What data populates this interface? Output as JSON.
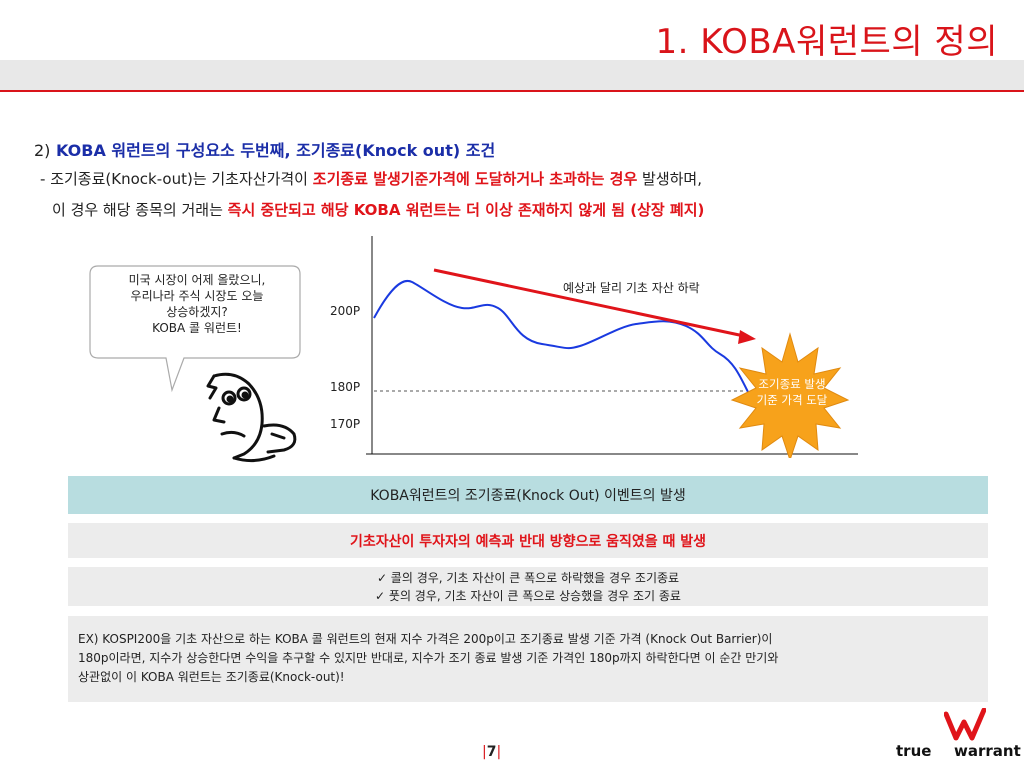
{
  "title": "1. KOBA워런트의 정의",
  "section": {
    "num": "2)",
    "heading": "KOBA 워런트의 구성요소 두번째, 조기종료(Knock out) 조건",
    "line1_dash": "-",
    "line1_a": "조기종료(Knock-out)는 기초자산가격이 ",
    "line1_red": "조기종료 발생기준가격에 도달하거나 초과하는 경우",
    "line1_b": " 발생하며,",
    "line2_a": "이 경우 해당 종목의 거래는 ",
    "line2_red": "즉시 중단되고 해당 ",
    "line2_bold": "KOBA",
    "line2_red2": " 워런트는 더 이상 존재하지 않게 됨 (상장 폐지)"
  },
  "bubble": {
    "line1": "미국 시장이 어제 올랐으니,",
    "line2": "우리나라 주식 시장도 오늘",
    "line3": "상승하겠지?",
    "line4": "KOBA 콜 워런트!"
  },
  "chart": {
    "note": "예상과 달리 기초 자산 하락",
    "burst_line1": "조기종료 발생",
    "burst_line2": "기준 가격 도달",
    "y_labels": [
      "200P",
      "180P",
      "170P"
    ],
    "colors": {
      "line": "#1a3ae0",
      "arrow": "#e0141a",
      "burst": "#f7a21b"
    }
  },
  "bars": {
    "event_title": "KOBA워런트의 조기종료(Knock Out) 이벤트의 발생",
    "condition": "기초자산이 투자자의 예측과 반대 방향으로 움직였을 때 발생",
    "check1": "✓ 콜의 경우, 기초 자산이 큰 폭으로 하락했을 경우 조기종료",
    "check2": "✓ 풋의 경우, 기초 자산이 큰 폭으로 상승했을 경우 조기 종료"
  },
  "example": {
    "line1": "EX) KOSPI200을 기초 자산으로 하는 KOBA 콜 워런트의 현재 지수 가격은 200p이고 조기종료 발생 기준 가격 (Knock Out Barrier)이",
    "line2": "180p이라면, 지수가 상승한다면 수익을 추구할 수 있지만 반대로, 지수가 조기 종료 발생 기준 가격인 180p까지 하락한다면 이 순간 만기와",
    "line3": "상관없이 이 KOBA 워런트는 조기종료(Knock-out)!"
  },
  "footer": {
    "pipe": "|",
    "page": "7",
    "logo_true": "true",
    "logo_warrant": "warrant"
  }
}
